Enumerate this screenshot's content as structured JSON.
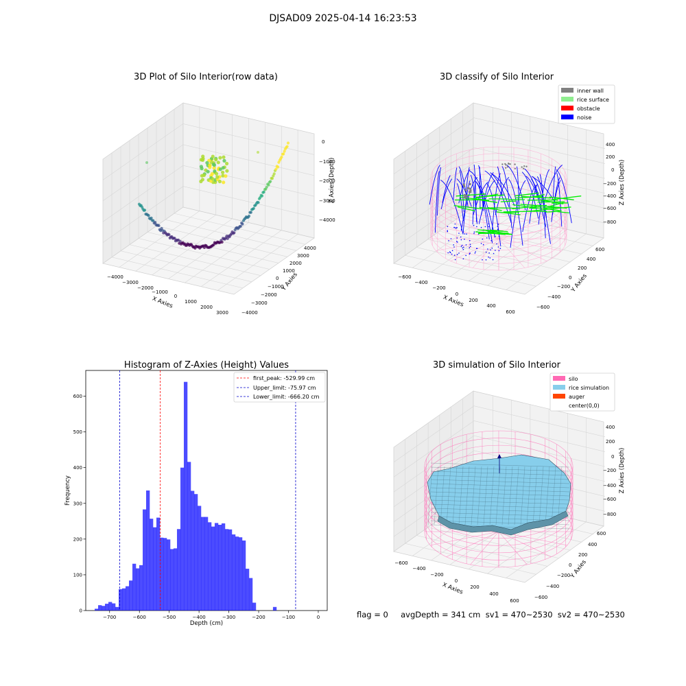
{
  "suptitle": "DJSAD09 2025-04-14 16:23:53",
  "status_line": "flag = 0     avgDepth = 341 cm  sv1 = 470~2530  sv2 = 470~2530",
  "chart_data": [
    {
      "type": "scatter",
      "projection": "3d",
      "title": "3D Plot of Silo Interior(row data)",
      "xlabel": "X Axies",
      "ylabel": "Y Axies",
      "zlabel": "Z Axies (Depth)",
      "x_ticks": [
        "−4000",
        "−3000",
        "−2000",
        "−1000",
        "0",
        "1000",
        "2000",
        "3000"
      ],
      "y_ticks": [
        "4000",
        "3000",
        "2000",
        "1000",
        "0",
        "−1000",
        "−2000",
        "−3000",
        "−4000"
      ],
      "z_ticks": [
        "0",
        "−1000",
        "−2000",
        "−3000",
        "−4000"
      ],
      "colormap": "viridis",
      "grid": true
    },
    {
      "type": "scatter",
      "projection": "3d",
      "title": "3D classify of Silo Interior",
      "xlabel": "X Axies",
      "ylabel": "Y Axies",
      "zlabel": "Z Axies (Depth)",
      "x_ticks": [
        "−600",
        "−400",
        "−200",
        "0",
        "200",
        "400",
        "600"
      ],
      "y_ticks": [
        "600",
        "400",
        "200",
        "0",
        "−200",
        "−400",
        "−600"
      ],
      "z_ticks": [
        "400",
        "200",
        "0",
        "−200",
        "−400",
        "−600",
        "−800"
      ],
      "legend": [
        {
          "label": "inner wall",
          "color": "#808080"
        },
        {
          "label": "rice surface",
          "color": "#90ee90"
        },
        {
          "label": "obstacle",
          "color": "#ff0000"
        },
        {
          "label": "noise",
          "color": "#0000ff"
        }
      ],
      "legend_position": "top-right",
      "grid": true
    },
    {
      "type": "bar",
      "subtype": "histogram",
      "title": "Histogram of Z-Axies (Height) Values",
      "xlabel": "Depth (cm)",
      "ylabel": "Frequency",
      "xlim": [
        -780,
        30
      ],
      "ylim": [
        0,
        672
      ],
      "x_ticks": [
        -700,
        -600,
        -500,
        -400,
        -300,
        -200,
        -100,
        0
      ],
      "x_tick_labels": [
        "−700",
        "−600",
        "−500",
        "−400",
        "−300",
        "−200",
        "−100",
        "0"
      ],
      "y_ticks": [
        0,
        100,
        200,
        300,
        400,
        500,
        600
      ],
      "bar_color": "#0000ff",
      "bins": {
        "start": -750,
        "width": 11.5,
        "counts": [
          5,
          15,
          13,
          19,
          24,
          20,
          10,
          60,
          62,
          68,
          84,
          131,
          118,
          127,
          283,
          336,
          257,
          233,
          260,
          204,
          203,
          199,
          172,
          174,
          228,
          400,
          640,
          416,
          335,
          326,
          293,
          262,
          262,
          247,
          235,
          245,
          240,
          244,
          228,
          227,
          213,
          207,
          205,
          196,
          117,
          91,
          22,
          0,
          0,
          0,
          0,
          0,
          10
        ]
      },
      "reference_lines": [
        {
          "label": "first_peak: -529.99 cm",
          "value": -529.99,
          "color": "#ff0000"
        },
        {
          "label": "Upper_limit: -75.97 cm",
          "value": -75.97,
          "color": "#0000cc"
        },
        {
          "label": "Lower_limit: -666.20 cm",
          "value": -666.2,
          "color": "#0000cc"
        }
      ],
      "legend_position": "top-right",
      "grid": false
    },
    {
      "type": "area",
      "projection": "3d",
      "title": "3D simulation of Silo Interior",
      "xlabel": "X Axies",
      "ylabel": "Y Axies",
      "zlabel": "Z Axies (Depth)",
      "x_ticks": [
        "−600",
        "−400",
        "−200",
        "0",
        "200",
        "400",
        "600"
      ],
      "y_ticks": [
        "600",
        "400",
        "200",
        "0",
        "−200",
        "−400",
        "−600"
      ],
      "z_ticks": [
        "400",
        "200",
        "0",
        "−200",
        "−400",
        "−600",
        "−800"
      ],
      "legend": [
        {
          "label": "silo",
          "color": "#ff69b4"
        },
        {
          "label": "rice simulation",
          "color": "#87ceeb"
        },
        {
          "label": "auger",
          "color": "#ff4500"
        },
        {
          "label": "center(0,0)",
          "color": "#ffffff"
        }
      ],
      "legend_position": "top-right",
      "grid": true
    }
  ]
}
